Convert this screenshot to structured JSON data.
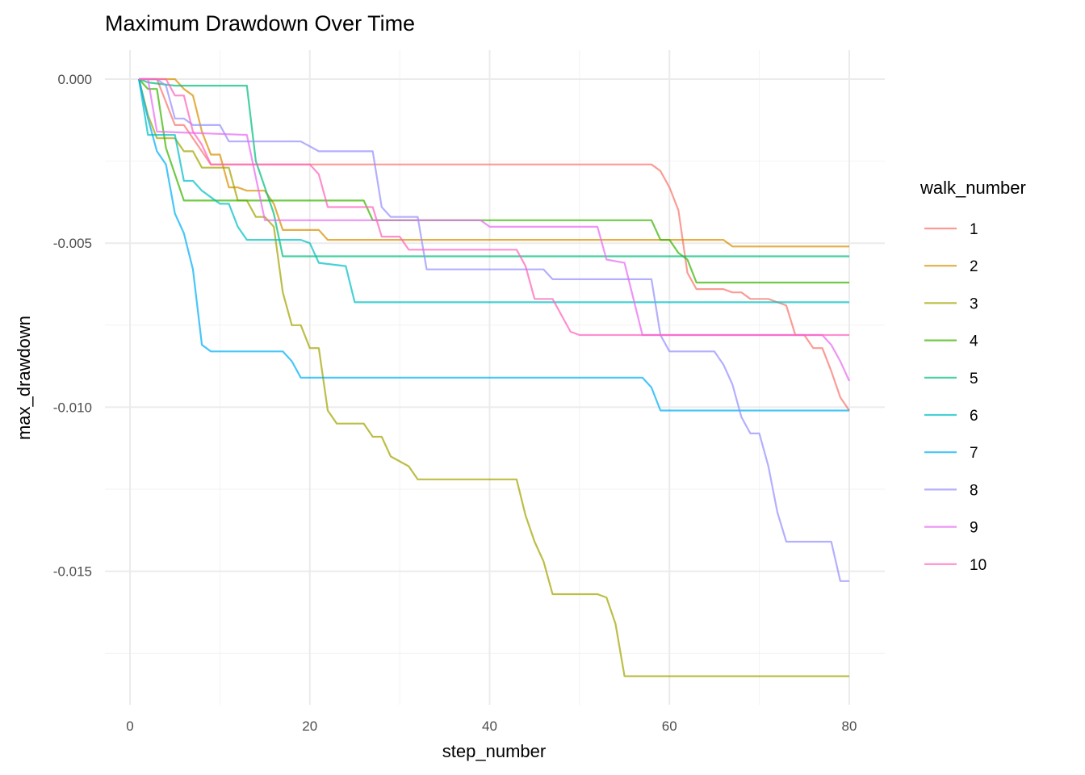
{
  "chart_data": {
    "type": "line",
    "title": "Maximum Drawdown Over Time",
    "xlabel": "step_number",
    "ylabel": "max_drawdown",
    "xlim": [
      0,
      80
    ],
    "ylim": [
      -0.0189,
      0.0009
    ],
    "x_ticks": [
      0,
      20,
      40,
      60,
      80
    ],
    "x_tick_labels": [
      "0",
      "20",
      "40",
      "60",
      "80"
    ],
    "y_ticks": [
      0,
      -0.005,
      -0.01,
      -0.015
    ],
    "y_tick_labels": [
      "0.000",
      "-0.005",
      "-0.010",
      "-0.015"
    ],
    "grid": true,
    "legend": {
      "title": "walk_number",
      "placement": "right"
    },
    "series": [
      {
        "name": "1",
        "color": "#F8766D",
        "x": [
          1,
          3,
          5,
          6,
          9,
          58,
          59,
          60,
          61,
          62,
          63,
          66,
          67,
          68,
          69,
          71,
          72,
          73,
          74,
          75,
          76,
          77,
          78,
          79,
          80
        ],
        "y": [
          0,
          0,
          -0.0014,
          -0.0014,
          -0.0026,
          -0.0026,
          -0.0028,
          -0.0033,
          -0.004,
          -0.0059,
          -0.0064,
          -0.0064,
          -0.0065,
          -0.0065,
          -0.0067,
          -0.0067,
          -0.0068,
          -0.0069,
          -0.0078,
          -0.0078,
          -0.0082,
          -0.0082,
          -0.0089,
          -0.0097,
          -0.0101
        ]
      },
      {
        "name": "2",
        "color": "#D89000",
        "x": [
          1,
          5,
          6,
          7,
          8,
          9,
          10,
          11,
          12,
          13,
          15,
          16,
          17,
          21,
          22,
          66,
          67,
          80
        ],
        "y": [
          0,
          0,
          -0.0003,
          -0.0005,
          -0.0016,
          -0.0023,
          -0.0023,
          -0.0033,
          -0.0033,
          -0.0034,
          -0.0034,
          -0.0038,
          -0.0046,
          -0.0046,
          -0.0049,
          -0.0049,
          -0.0051,
          -0.0051
        ]
      },
      {
        "name": "3",
        "color": "#A3A500",
        "x": [
          1,
          2,
          3,
          5,
          6,
          7,
          8,
          11,
          12,
          13,
          14,
          15,
          16,
          17,
          18,
          19,
          20,
          21,
          22,
          23,
          26,
          27,
          28,
          29,
          31,
          32,
          43,
          44,
          45,
          46,
          47,
          52,
          53,
          54,
          55,
          80
        ],
        "y": [
          0,
          -0.0011,
          -0.0018,
          -0.0018,
          -0.0022,
          -0.0022,
          -0.0027,
          -0.0027,
          -0.0037,
          -0.0037,
          -0.0042,
          -0.0042,
          -0.0045,
          -0.0065,
          -0.0075,
          -0.0075,
          -0.0082,
          -0.0082,
          -0.0101,
          -0.0105,
          -0.0105,
          -0.0109,
          -0.0109,
          -0.0115,
          -0.0118,
          -0.0122,
          -0.0122,
          -0.0133,
          -0.0141,
          -0.0147,
          -0.0157,
          -0.0157,
          -0.0158,
          -0.0166,
          -0.0182,
          -0.0182
        ]
      },
      {
        "name": "4",
        "color": "#39B600",
        "x": [
          1,
          2,
          3,
          4,
          5,
          6,
          26,
          27,
          58,
          59,
          60,
          61,
          62,
          63,
          80
        ],
        "y": [
          0,
          -0.0003,
          -0.0003,
          -0.0021,
          -0.0029,
          -0.0037,
          -0.0037,
          -0.0043,
          -0.0043,
          -0.0049,
          -0.0049,
          -0.0053,
          -0.0055,
          -0.0062,
          -0.0062
        ]
      },
      {
        "name": "5",
        "color": "#00BF7D",
        "x": [
          1,
          2,
          5,
          13,
          14,
          15,
          16,
          17,
          80
        ],
        "y": [
          0,
          -0.0001,
          -0.0002,
          -0.0002,
          -0.0025,
          -0.0033,
          -0.0041,
          -0.0054,
          -0.0054
        ]
      },
      {
        "name": "6",
        "color": "#00BFC4",
        "x": [
          1,
          2,
          5,
          6,
          7,
          8,
          9,
          10,
          11,
          12,
          13,
          19,
          20,
          21,
          24,
          25,
          80
        ],
        "y": [
          0,
          -0.0017,
          -0.0017,
          -0.0031,
          -0.0031,
          -0.0034,
          -0.0036,
          -0.0038,
          -0.0038,
          -0.0045,
          -0.0049,
          -0.0049,
          -0.005,
          -0.0056,
          -0.0057,
          -0.0068,
          -0.0068
        ]
      },
      {
        "name": "7",
        "color": "#00B0F6",
        "x": [
          1,
          2,
          3,
          4,
          5,
          6,
          7,
          8,
          9,
          17,
          18,
          19,
          57,
          58,
          59,
          80
        ],
        "y": [
          0,
          -0.0012,
          -0.0022,
          -0.0026,
          -0.0041,
          -0.0047,
          -0.0058,
          -0.0081,
          -0.0083,
          -0.0083,
          -0.0086,
          -0.0091,
          -0.0091,
          -0.0094,
          -0.0101,
          -0.0101
        ]
      },
      {
        "name": "8",
        "color": "#9590FF",
        "x": [
          1,
          3,
          4,
          5,
          6,
          7,
          10,
          11,
          19,
          21,
          27,
          28,
          29,
          32,
          33,
          46,
          47,
          58,
          59,
          60,
          65,
          66,
          67,
          68,
          69,
          70,
          71,
          72,
          73,
          78,
          79,
          80
        ],
        "y": [
          0,
          0,
          -0.0002,
          -0.0012,
          -0.0012,
          -0.0014,
          -0.0014,
          -0.0019,
          -0.0019,
          -0.0022,
          -0.0022,
          -0.0039,
          -0.0042,
          -0.0042,
          -0.0058,
          -0.0058,
          -0.0061,
          -0.0061,
          -0.0078,
          -0.0083,
          -0.0083,
          -0.0087,
          -0.0093,
          -0.0103,
          -0.0108,
          -0.0108,
          -0.0118,
          -0.0132,
          -0.0141,
          -0.0141,
          -0.0153,
          -0.0153
        ]
      },
      {
        "name": "9",
        "color": "#E76BF3",
        "x": [
          1,
          2,
          3,
          13,
          14,
          15,
          39,
          40,
          52,
          53,
          55,
          56,
          57,
          77,
          78,
          79,
          80
        ],
        "y": [
          0,
          0,
          -0.0016,
          -0.0017,
          -0.003,
          -0.0043,
          -0.0043,
          -0.0045,
          -0.0045,
          -0.0055,
          -0.0056,
          -0.0067,
          -0.0078,
          -0.0078,
          -0.0081,
          -0.0086,
          -0.0092
        ]
      },
      {
        "name": "10",
        "color": "#FF62BC",
        "x": [
          1,
          4,
          5,
          6,
          7,
          8,
          9,
          20,
          21,
          22,
          27,
          28,
          30,
          31,
          43,
          44,
          45,
          47,
          48,
          49,
          50,
          80
        ],
        "y": [
          0,
          0,
          -0.0005,
          -0.0005,
          -0.0016,
          -0.002,
          -0.0026,
          -0.0026,
          -0.0029,
          -0.0039,
          -0.0039,
          -0.0048,
          -0.0048,
          -0.0052,
          -0.0052,
          -0.0057,
          -0.0067,
          -0.0067,
          -0.0072,
          -0.0077,
          -0.0078,
          -0.0078
        ]
      }
    ]
  }
}
